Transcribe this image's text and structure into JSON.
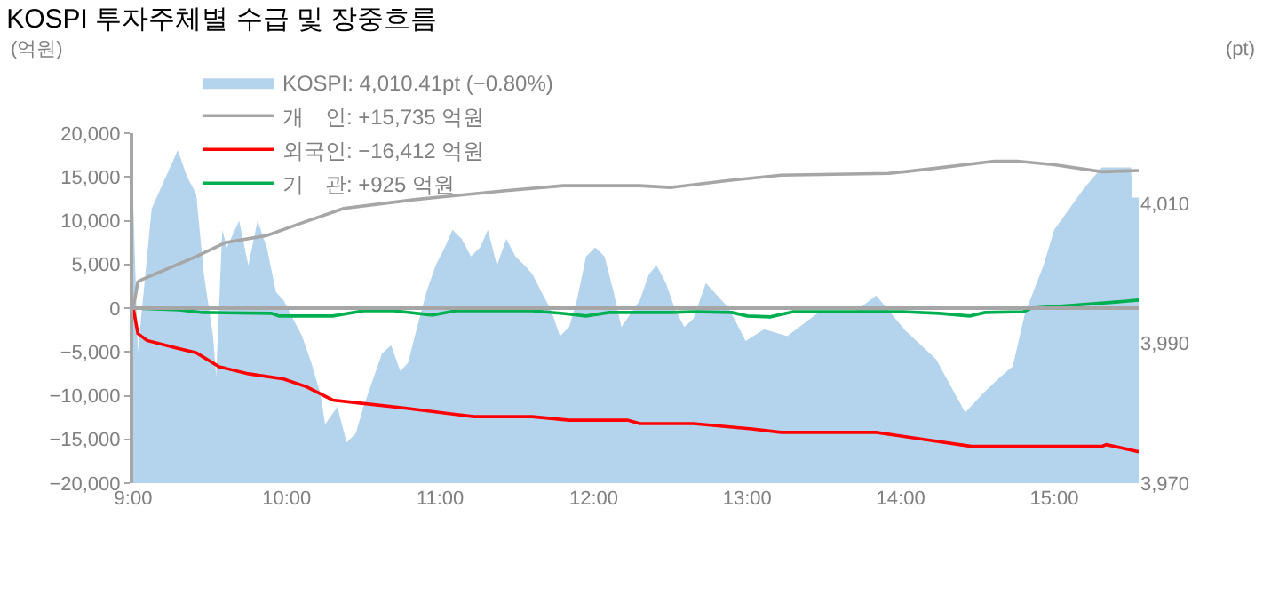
{
  "chart_data": {
    "type": "line",
    "title": "KOSPI 투자주체별 수급 및 장중흐름",
    "ylabel": "(억원)",
    "y2label": "(pt)",
    "xlim": [
      9,
      15.55
    ],
    "xticks": [
      {
        "value": 9,
        "label": "9:00"
      },
      {
        "value": 10,
        "label": "10:00"
      },
      {
        "value": 11,
        "label": "11:00"
      },
      {
        "value": 12,
        "label": "12:00"
      },
      {
        "value": 13,
        "label": "13:00"
      },
      {
        "value": 14,
        "label": "14:00"
      },
      {
        "value": 15,
        "label": "15:00"
      }
    ],
    "ylim": [
      -20000,
      20000
    ],
    "yticks": [
      {
        "value": -20000,
        "label": "−20,000"
      },
      {
        "value": -15000,
        "label": "−15,000"
      },
      {
        "value": -10000,
        "label": "−10,000"
      },
      {
        "value": -5000,
        "label": "−5,000"
      },
      0,
      {
        "value": 5000,
        "label": "5,000"
      },
      {
        "value": 10000,
        "label": "10,000"
      },
      {
        "value": 15000,
        "label": "15,000"
      },
      {
        "value": 20000,
        "label": "20,000"
      }
    ],
    "y2lim": [
      3970,
      4020
    ],
    "y2ticks": [
      {
        "value": 3970,
        "label": "3,970"
      },
      {
        "value": 3990,
        "label": "3,990"
      },
      {
        "value": 4010,
        "label": "4,010"
      }
    ],
    "legend": "top left",
    "marker": "none",
    "ref_lines": [
      {
        "axis": "y",
        "value": 0,
        "color": "#a6a6a6"
      }
    ],
    "series": [
      {
        "name": "KOSPI: 4,010.41pt (−0.80%)",
        "type": "area",
        "axis": "y2",
        "color": "#b4d3ec",
        "x": [
          9.0,
          9.03,
          9.12,
          9.29,
          9.35,
          9.41,
          9.46,
          9.52,
          9.54,
          9.58,
          9.61,
          9.69,
          9.75,
          9.81,
          9.87,
          9.93,
          9.98,
          10.04,
          10.1,
          10.16,
          10.22,
          10.25,
          10.33,
          10.39,
          10.45,
          10.5,
          10.56,
          10.62,
          10.68,
          10.74,
          10.79,
          10.85,
          10.91,
          10.97,
          11.03,
          11.08,
          11.14,
          11.2,
          11.26,
          11.31,
          11.37,
          11.43,
          11.49,
          11.55,
          11.6,
          11.66,
          11.72,
          11.78,
          11.84,
          11.89,
          11.95,
          12.01,
          12.07,
          12.13,
          12.18,
          12.3,
          12.36,
          12.41,
          12.47,
          12.53,
          12.59,
          12.65,
          12.73,
          12.88,
          12.99,
          13.11,
          13.26,
          13.46,
          13.69,
          13.84,
          14.03,
          14.23,
          14.42,
          14.53,
          14.65,
          14.73,
          14.81,
          14.93,
          15.0,
          15.19,
          15.31,
          15.5,
          15.51,
          15.55
        ],
        "values": [
          4010,
          3988.7,
          4009.2,
          4017.6,
          4013.8,
          4011.3,
          3999.9,
          3991,
          3985.2,
          4006.2,
          4003.7,
          4007.5,
          4001.1,
          4007.5,
          4003.7,
          3997.3,
          3996.1,
          3993.5,
          3991,
          3987.2,
          3982.7,
          3978.4,
          3980.9,
          3975.8,
          3977.1,
          3980.9,
          3984.7,
          3988.5,
          3989.7,
          3986,
          3987.2,
          3992.3,
          3997.3,
          4001.1,
          4003.7,
          4006.2,
          4004.9,
          4002.4,
          4003.7,
          4006.2,
          4001.1,
          4004.9,
          4002.4,
          4001.1,
          3999.9,
          3997.3,
          3994.8,
          3991,
          3992.3,
          3996.1,
          4002.4,
          4003.7,
          4002.4,
          3997.3,
          3992.3,
          3996.1,
          3999.9,
          4001.1,
          3998.6,
          3994.8,
          3992.3,
          3993.5,
          3998.6,
          3995,
          3990.3,
          3992,
          3991,
          3994.3,
          3994.3,
          3996.8,
          3991.8,
          3987.7,
          3980.1,
          3982.7,
          3985.2,
          3986.7,
          3994.3,
          4001.1,
          4006.2,
          4012,
          4015.1,
          4015.1,
          4010.8,
          4010.8
        ]
      },
      {
        "name": "개　인: +15,735 억원",
        "color": "#a6a6a6",
        "x": [
          9.0,
          9.03,
          9.06,
          9.41,
          9.6,
          9.87,
          10.06,
          10.37,
          10.83,
          11.41,
          11.8,
          12.3,
          12.5,
          12.88,
          13.22,
          13.92,
          14.23,
          14.61,
          14.76,
          15.0,
          15.31,
          15.55
        ],
        "values": [
          0,
          3000,
          3300,
          5900,
          7500,
          8300,
          9500,
          11400,
          12400,
          13400,
          14000,
          14000,
          13800,
          14600,
          15200,
          15400,
          16000,
          16800,
          16800,
          16400,
          15600,
          15735
        ]
      },
      {
        "name": "외국인: −16,412 억원",
        "color": "#ff0000",
        "x": [
          9.0,
          9.03,
          9.09,
          9.29,
          9.41,
          9.56,
          9.75,
          9.98,
          10.13,
          10.3,
          10.45,
          10.76,
          11.22,
          11.6,
          11.84,
          12.22,
          12.3,
          12.65,
          13.03,
          13.22,
          13.84,
          14.15,
          14.46,
          15.31,
          15.34,
          15.55
        ],
        "values": [
          0,
          -2900,
          -3700,
          -4600,
          -5100,
          -6700,
          -7500,
          -8100,
          -9000,
          -10500,
          -10800,
          -11400,
          -12400,
          -12400,
          -12800,
          -12800,
          -13200,
          -13200,
          -13800,
          -14200,
          -14200,
          -15000,
          -15800,
          -15800,
          -15600,
          -16412
        ]
      },
      {
        "name": "기　관: +925 억원",
        "color": "#00b050",
        "x": [
          9.0,
          9.3,
          9.45,
          9.9,
          9.95,
          10.3,
          10.5,
          10.7,
          10.95,
          11.1,
          11.6,
          11.8,
          11.95,
          12.1,
          12.5,
          12.65,
          12.9,
          13.0,
          13.15,
          13.3,
          14.0,
          14.25,
          14.45,
          14.55,
          14.8,
          14.85,
          15.1,
          15.4,
          15.55
        ],
        "values": [
          0,
          -200,
          -500,
          -600,
          -900,
          -900,
          -300,
          -300,
          -800,
          -300,
          -300,
          -600,
          -900,
          -500,
          -500,
          -400,
          -500,
          -900,
          -1000,
          -400,
          -400,
          -600,
          -900,
          -500,
          -400,
          0,
          300,
          700,
          925
        ]
      }
    ]
  }
}
